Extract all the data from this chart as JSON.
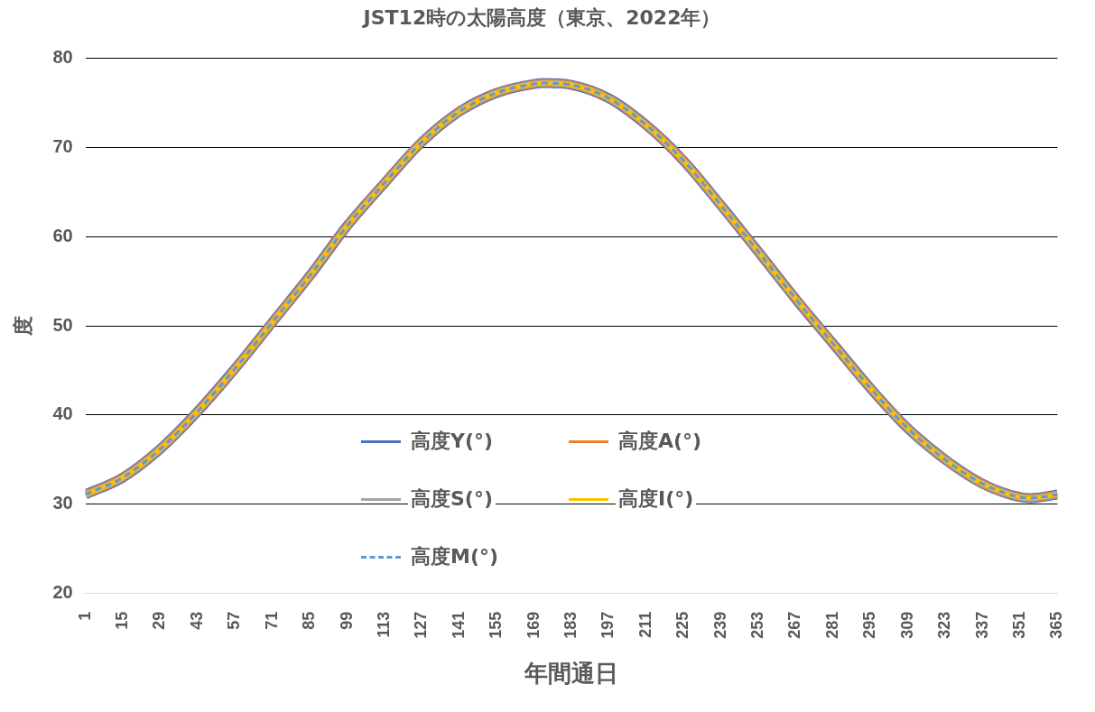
{
  "chart_data": {
    "type": "line",
    "title": "JST12時の太陽高度（東京、2022年）",
    "xlabel": "年間通日",
    "ylabel": "度",
    "x": [
      1,
      15,
      29,
      43,
      57,
      71,
      85,
      99,
      113,
      127,
      141,
      155,
      169,
      173,
      183,
      197,
      211,
      225,
      239,
      253,
      267,
      281,
      295,
      309,
      323,
      337,
      351,
      355,
      365
    ],
    "series": [
      {
        "name": "高度Y(°)",
        "color": "#4472c4",
        "values": [
          31.1,
          33.0,
          36.2,
          40.4,
          45.2,
          50.4,
          55.6,
          61.2,
          66.0,
          70.6,
          74.0,
          76.1,
          77.1,
          77.2,
          77.0,
          75.5,
          72.5,
          68.5,
          63.5,
          58.3,
          53.0,
          48.0,
          43.0,
          38.5,
          35.0,
          32.3,
          30.8,
          30.7,
          31.1
        ]
      },
      {
        "name": "高度A(°)",
        "color": "#ed7d31",
        "values": [
          31.1,
          33.0,
          36.2,
          40.4,
          45.2,
          50.4,
          55.6,
          61.2,
          66.0,
          70.6,
          74.0,
          76.1,
          77.1,
          77.2,
          77.0,
          75.5,
          72.5,
          68.5,
          63.5,
          58.3,
          53.0,
          48.0,
          43.0,
          38.5,
          35.0,
          32.3,
          30.8,
          30.7,
          31.1
        ]
      },
      {
        "name": "高度S(°)",
        "color": "#a5a5a5",
        "values": [
          31.1,
          33.0,
          36.2,
          40.4,
          45.2,
          50.4,
          55.6,
          61.2,
          66.0,
          70.6,
          74.0,
          76.1,
          77.1,
          77.2,
          77.0,
          75.5,
          72.5,
          68.5,
          63.5,
          58.3,
          53.0,
          48.0,
          43.0,
          38.5,
          35.0,
          32.3,
          30.8,
          30.7,
          31.1
        ]
      },
      {
        "name": "高度I(°)",
        "color": "#ffc000",
        "values": [
          31.1,
          33.0,
          36.2,
          40.4,
          45.2,
          50.4,
          55.6,
          61.2,
          66.0,
          70.6,
          74.0,
          76.1,
          77.1,
          77.2,
          77.0,
          75.5,
          72.5,
          68.5,
          63.5,
          58.3,
          53.0,
          48.0,
          43.0,
          38.5,
          35.0,
          32.3,
          30.8,
          30.7,
          31.1
        ]
      },
      {
        "name": "高度M(°)",
        "color": "#5b9bd5",
        "line_style": "dashed",
        "values": [
          31.1,
          33.0,
          36.2,
          40.4,
          45.2,
          50.4,
          55.6,
          61.2,
          66.0,
          70.6,
          74.0,
          76.1,
          77.1,
          77.2,
          77.0,
          75.5,
          72.5,
          68.5,
          63.5,
          58.3,
          53.0,
          48.0,
          43.0,
          38.5,
          35.0,
          32.3,
          30.8,
          30.7,
          31.1
        ]
      }
    ],
    "xlim": [
      1,
      365
    ],
    "xticks": [
      1,
      15,
      29,
      43,
      57,
      71,
      85,
      99,
      113,
      127,
      141,
      155,
      169,
      183,
      197,
      211,
      225,
      239,
      253,
      267,
      281,
      295,
      309,
      323,
      337,
      351,
      365
    ],
    "ylim": [
      20,
      80
    ],
    "yticks": [
      20,
      30,
      40,
      50,
      60,
      70,
      80
    ],
    "grid": "y",
    "legend": "bottom",
    "marker": "none",
    "line_style": "solid"
  }
}
